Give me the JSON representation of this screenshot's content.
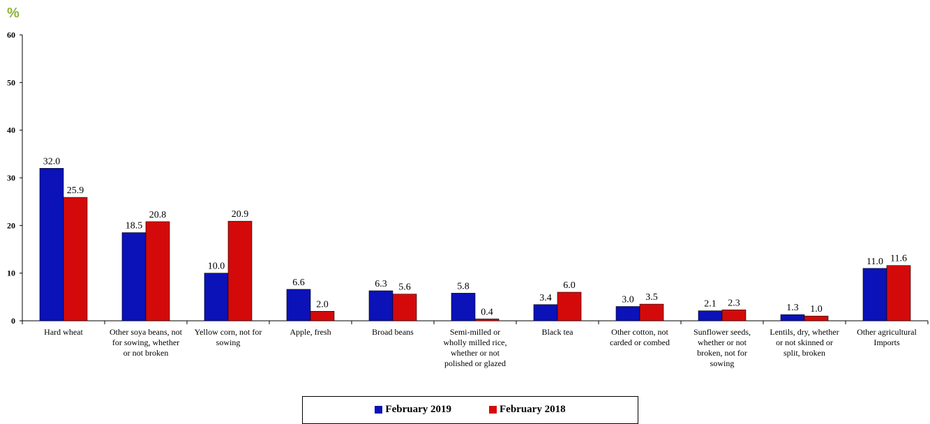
{
  "chart_data": {
    "type": "bar",
    "unit_label": "%",
    "colors": {
      "unit": "#8db33b",
      "February 2019": "#0a12b8",
      "February 2018": "#d40a0a"
    },
    "ylim": [
      0,
      60
    ],
    "yticks": [
      "0",
      "10",
      "20",
      "30",
      "40",
      "50",
      "60"
    ],
    "categories": [
      [
        "Hard wheat"
      ],
      [
        "Other soya beans, not",
        "for sowing, whether",
        "or not broken"
      ],
      [
        "Yellow corn, not for",
        "sowing"
      ],
      [
        "Apple, fresh"
      ],
      [
        "Broad beans"
      ],
      [
        "Semi-milled or",
        "wholly milled rice,",
        "whether or not",
        "polished or glazed"
      ],
      [
        "Black tea"
      ],
      [
        "Other cotton, not",
        "carded or combed"
      ],
      [
        "Sunflower seeds,",
        "whether or not",
        "broken, not for",
        "sowing"
      ],
      [
        "Lentils, dry, whether",
        "or not skinned or",
        "split, broken"
      ],
      [
        "Other agricultural",
        "Imports"
      ]
    ],
    "series": [
      {
        "name": "February 2019",
        "values": [
          32.0,
          18.5,
          10.0,
          6.6,
          6.3,
          5.8,
          3.4,
          3.0,
          2.1,
          1.3,
          11.0
        ],
        "labels": [
          "32.0",
          "18.5",
          "10.0",
          "6.6",
          "6.3",
          "5.8",
          "3.4",
          "3.0",
          "2.1",
          "1.3",
          "11.0"
        ]
      },
      {
        "name": "February  2018",
        "values": [
          25.9,
          20.8,
          20.9,
          2.0,
          5.6,
          0.4,
          6.0,
          3.5,
          2.3,
          1.0,
          11.6
        ],
        "labels": [
          "25.9",
          "20.8",
          "20.9",
          "2.0",
          "5.6",
          "0.4",
          "6.0",
          "3.5",
          "2.3",
          "1.0",
          "11.6"
        ]
      }
    ],
    "legend_position": "bottom"
  }
}
